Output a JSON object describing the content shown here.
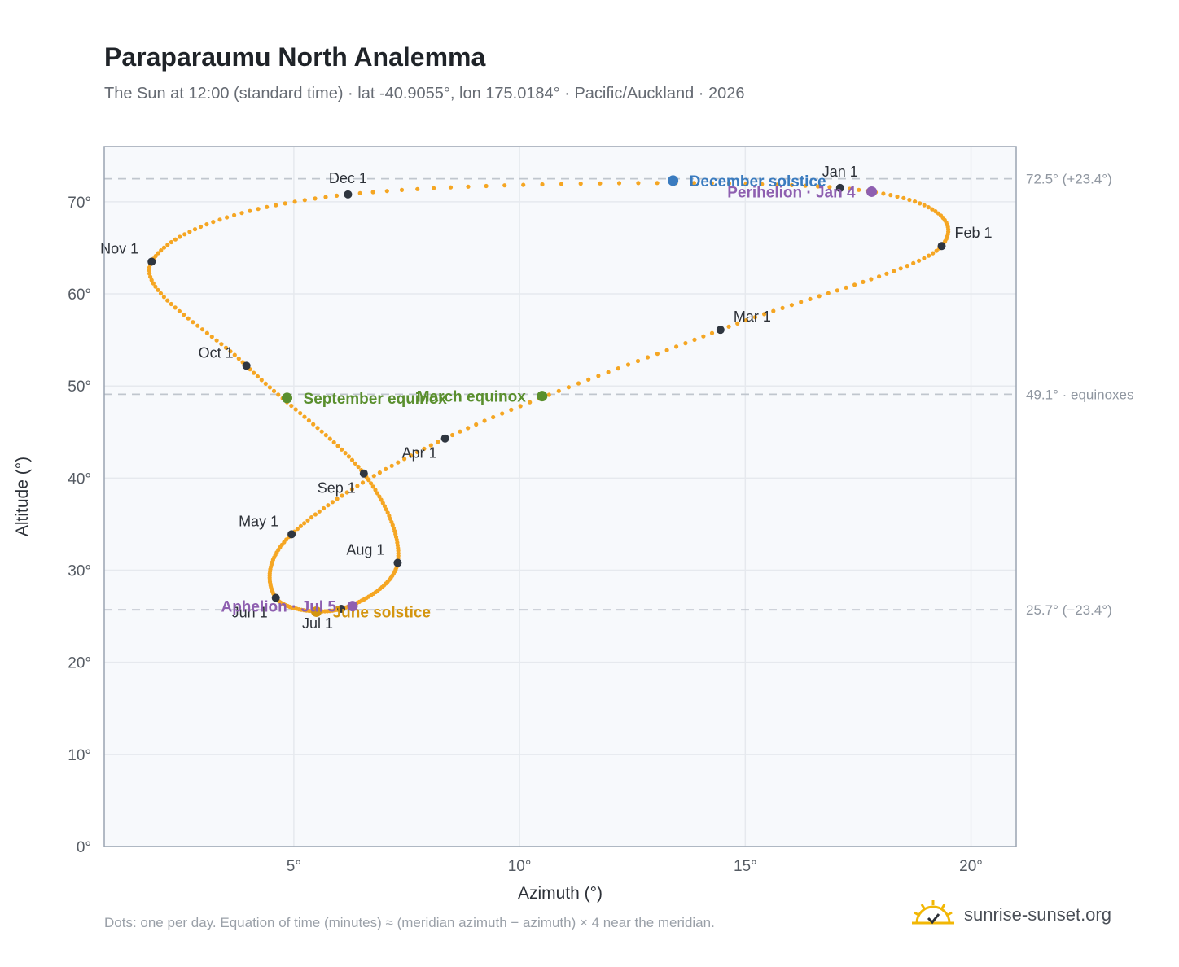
{
  "header": {
    "title": "Paraparaumu North Analemma",
    "subtitle": "The Sun at 12:00 (standard time) · lat -40.9055°, lon 175.0184° · Pacific/Auckland · 2026"
  },
  "footer": {
    "note": "Dots: one per day. Equation of time (minutes) ≈ (meridian azimuth − azimuth) × 4 near the meridian.",
    "brand": "sunrise-sunset.org"
  },
  "colors": {
    "path": "#f5a623",
    "month_marker": "#2f3640",
    "december_solstice": "#3a7bbf",
    "june_solstice": "#d4950f",
    "equinox": "#5a8f2e",
    "apsis": "#8e5fb0",
    "grid": "#e6e9ee",
    "reference_line": "#c0c6ce",
    "plot_bg": "#f7f9fc",
    "plot_border": "#9aa4b2"
  },
  "chart_data": {
    "type": "scatter",
    "xlabel": "Azimuth (°)",
    "ylabel": "Altitude (°)",
    "xlim": [
      0.8,
      21
    ],
    "ylim": [
      0,
      76
    ],
    "x_ticks": [
      {
        "value": 5,
        "label": "5°"
      },
      {
        "value": 10,
        "label": "10°"
      },
      {
        "value": 15,
        "label": "15°"
      },
      {
        "value": 20,
        "label": "20°"
      }
    ],
    "y_ticks": [
      {
        "value": 0,
        "label": "0°"
      },
      {
        "value": 10,
        "label": "10°"
      },
      {
        "value": 20,
        "label": "20°"
      },
      {
        "value": 30,
        "label": "30°"
      },
      {
        "value": 40,
        "label": "40°"
      },
      {
        "value": 50,
        "label": "50°"
      },
      {
        "value": 60,
        "label": "60°"
      },
      {
        "value": 70,
        "label": "70°"
      }
    ],
    "grid": true,
    "reference_lines": [
      {
        "y": 72.5,
        "label": "72.5° (+23.4°)"
      },
      {
        "y": 49.1,
        "label": "49.1° · equinoxes"
      },
      {
        "y": 25.7,
        "label": "25.7° (−23.4°)"
      }
    ],
    "month_points": [
      {
        "label": "Jan 1",
        "x": 17.1,
        "y": 71.5,
        "label_pos": "above"
      },
      {
        "label": "Feb 1",
        "x": 19.35,
        "y": 65.2,
        "label_pos": "right"
      },
      {
        "label": "Mar 1",
        "x": 14.45,
        "y": 56.1,
        "label_pos": "right"
      },
      {
        "label": "Apr 1",
        "x": 8.35,
        "y": 44.3,
        "label_pos": "below-left"
      },
      {
        "label": "May 1",
        "x": 4.95,
        "y": 33.9,
        "label_pos": "left"
      },
      {
        "label": "Jun 1",
        "x": 4.6,
        "y": 27.0,
        "label_pos": "below-left"
      },
      {
        "label": "Jul 1",
        "x": 6.05,
        "y": 25.8,
        "label_pos": "below-left"
      },
      {
        "label": "Aug 1",
        "x": 7.3,
        "y": 30.8,
        "label_pos": "left"
      },
      {
        "label": "Sep 1",
        "x": 6.55,
        "y": 40.5,
        "label_pos": "below-left"
      },
      {
        "label": "Oct 1",
        "x": 3.95,
        "y": 52.2,
        "label_pos": "left"
      },
      {
        "label": "Nov 1",
        "x": 1.85,
        "y": 63.5,
        "label_pos": "left"
      },
      {
        "label": "Dec 1",
        "x": 6.2,
        "y": 70.8,
        "label_pos": "above"
      }
    ],
    "events": [
      {
        "label": "December solstice",
        "x": 13.4,
        "y": 72.3,
        "color": "#3a7bbf",
        "label_pos": "right"
      },
      {
        "label": "June solstice",
        "x": 5.5,
        "y": 25.5,
        "color": "#d4950f",
        "label_pos": "right"
      },
      {
        "label": "March equinox",
        "x": 10.5,
        "y": 48.9,
        "color": "#5a8f2e",
        "label_pos": "left"
      },
      {
        "label": "September equinox",
        "x": 4.85,
        "y": 48.7,
        "color": "#5a8f2e",
        "label_pos": "right"
      },
      {
        "label": "Perihelion · Jan 4",
        "x": 17.8,
        "y": 71.1,
        "color": "#8e5fb0",
        "label_pos": "left"
      },
      {
        "label": "Aphelion · Jul 5",
        "x": 6.3,
        "y": 26.1,
        "color": "#8e5fb0",
        "label_pos": "left"
      }
    ]
  }
}
